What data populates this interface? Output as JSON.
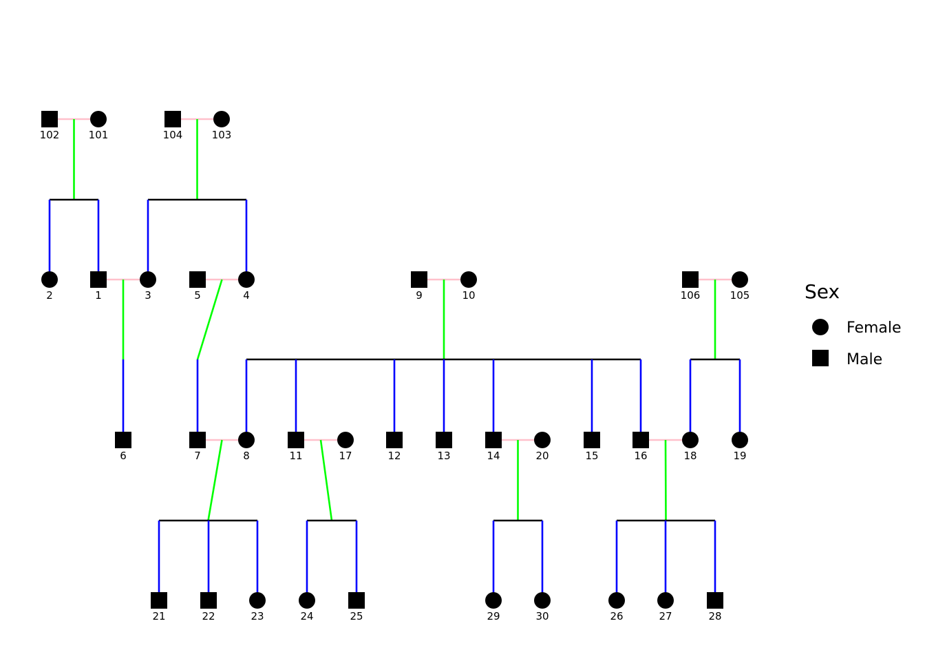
{
  "colors": {
    "spouse_line": "#ffc0cb",
    "mating_drop_line": "#00ff00",
    "offspring_line": "#0000ff",
    "sibship_line": "#000000",
    "symbol": "#000000"
  },
  "individuals": [
    {
      "id": "102",
      "sex": "male"
    },
    {
      "id": "101",
      "sex": "female"
    },
    {
      "id": "104",
      "sex": "male"
    },
    {
      "id": "103",
      "sex": "female"
    },
    {
      "id": "2",
      "sex": "female"
    },
    {
      "id": "1",
      "sex": "male"
    },
    {
      "id": "3",
      "sex": "female"
    },
    {
      "id": "5",
      "sex": "male"
    },
    {
      "id": "4",
      "sex": "female"
    },
    {
      "id": "9",
      "sex": "male"
    },
    {
      "id": "10",
      "sex": "female"
    },
    {
      "id": "106",
      "sex": "male"
    },
    {
      "id": "105",
      "sex": "female"
    },
    {
      "id": "6",
      "sex": "male"
    },
    {
      "id": "7",
      "sex": "male"
    },
    {
      "id": "8",
      "sex": "female"
    },
    {
      "id": "11",
      "sex": "male"
    },
    {
      "id": "17",
      "sex": "female"
    },
    {
      "id": "12",
      "sex": "male"
    },
    {
      "id": "13",
      "sex": "male"
    },
    {
      "id": "14",
      "sex": "male"
    },
    {
      "id": "20",
      "sex": "female"
    },
    {
      "id": "15",
      "sex": "male"
    },
    {
      "id": "16",
      "sex": "male"
    },
    {
      "id": "18",
      "sex": "female"
    },
    {
      "id": "19",
      "sex": "female"
    },
    {
      "id": "21",
      "sex": "male"
    },
    {
      "id": "22",
      "sex": "male"
    },
    {
      "id": "23",
      "sex": "female"
    },
    {
      "id": "24",
      "sex": "female"
    },
    {
      "id": "25",
      "sex": "male"
    },
    {
      "id": "29",
      "sex": "female"
    },
    {
      "id": "30",
      "sex": "female"
    },
    {
      "id": "26",
      "sex": "female"
    },
    {
      "id": "27",
      "sex": "female"
    },
    {
      "id": "28",
      "sex": "male"
    }
  ],
  "families": [
    {
      "father": "102",
      "mother": "101",
      "children": [
        "2",
        "1"
      ]
    },
    {
      "father": "104",
      "mother": "103",
      "children": [
        "3",
        "4"
      ]
    },
    {
      "father": "1",
      "mother": "3",
      "children": [
        "6"
      ]
    },
    {
      "father": "5",
      "mother": "4",
      "children": [
        "7"
      ]
    },
    {
      "father": "9",
      "mother": "10",
      "children": [
        "8",
        "11",
        "12",
        "13",
        "14",
        "15",
        "16"
      ]
    },
    {
      "father": "106",
      "mother": "105",
      "children": [
        "18",
        "19"
      ]
    },
    {
      "father": "7",
      "mother": "8",
      "children": [
        "21",
        "22",
        "23"
      ]
    },
    {
      "father": "11",
      "mother": "17",
      "children": [
        "24",
        "25"
      ]
    },
    {
      "father": "14",
      "mother": "20",
      "children": [
        "29",
        "30"
      ]
    },
    {
      "father": "16",
      "mother": "18",
      "children": [
        "26",
        "27",
        "28"
      ]
    }
  ],
  "legend": {
    "title": "Sex",
    "items": [
      {
        "label": "Female",
        "shape": "circle"
      },
      {
        "label": "Male",
        "shape": "square"
      }
    ]
  }
}
